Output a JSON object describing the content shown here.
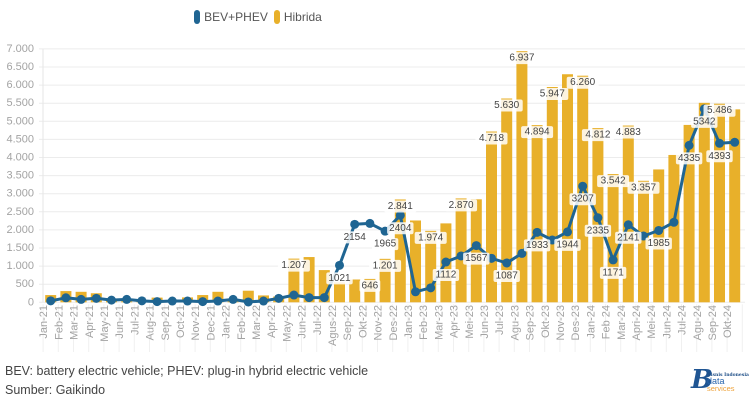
{
  "chart_data": {
    "type": "bar",
    "title": "",
    "xlabel": "",
    "ylabel": "",
    "ylim": [
      0,
      7000
    ],
    "grid": true,
    "legend": {
      "position": "top-center"
    },
    "y_ticks": [
      {
        "value": 0,
        "label": "0"
      },
      {
        "value": 500,
        "label": "500"
      },
      {
        "value": 1000,
        "label": "1.000"
      },
      {
        "value": 1500,
        "label": "1.500"
      },
      {
        "value": 2000,
        "label": "2.000"
      },
      {
        "value": 2500,
        "label": "2.500"
      },
      {
        "value": 3000,
        "label": "3.000"
      },
      {
        "value": 3500,
        "label": "3.500"
      },
      {
        "value": 4000,
        "label": "4.000"
      },
      {
        "value": 4500,
        "label": "4.500"
      },
      {
        "value": 5000,
        "label": "5.000"
      },
      {
        "value": 5500,
        "label": "5.500"
      },
      {
        "value": 6000,
        "label": "6.000"
      },
      {
        "value": 6500,
        "label": "6.500"
      },
      {
        "value": 7000,
        "label": "7.000"
      }
    ],
    "categories": [
      "Jan-21",
      "Feb-21",
      "Mar-21",
      "Apr-21",
      "May-21",
      "Jun-21",
      "Jul-21",
      "Aug-21",
      "Sep-21",
      "Oct-21",
      "Nov-21",
      "Dec-21",
      "Jan-22",
      "Feb-22",
      "Mar-22",
      "Apr-22",
      "May-22",
      "Jun-22",
      "Jul-22",
      "Agus-22",
      "Sep-22",
      "Okt-22",
      "Nov-22",
      "Des-22",
      "Jan-23",
      "Feb-23",
      "Mar-23",
      "Apr-23",
      "Mei-23",
      "Jun-23",
      "Jul-23",
      "Agu-23",
      "Sep-23",
      "Okt-23",
      "Nov-23",
      "Des-23",
      "Jan-24",
      "Feb 24",
      "Mar-24",
      "Apri-24",
      "Mei-24",
      "Jun-24",
      "Jul-24",
      "Agu-24",
      "Sep-24",
      "Okt-24"
    ],
    "series": [
      {
        "name": "BEV+PHEV",
        "type": "line",
        "color": "#1f6592",
        "values": [
          40,
          125,
          80,
          110,
          60,
          80,
          40,
          20,
          35,
          35,
          20,
          35,
          80,
          10,
          35,
          110,
          200,
          130,
          130,
          1021,
          2154,
          2180,
          1965,
          2404,
          290,
          400,
          1112,
          1280,
          1567,
          1215,
          1087,
          1350,
          1933,
          1720,
          1944,
          3207,
          2335,
          1171,
          2141,
          1830,
          1985,
          2210,
          4335,
          5342,
          4393,
          4420
        ],
        "labels": [
          null,
          null,
          null,
          null,
          null,
          null,
          null,
          null,
          null,
          null,
          null,
          null,
          null,
          null,
          null,
          null,
          null,
          null,
          null,
          "1021",
          "2154",
          null,
          "1965",
          "2404",
          null,
          null,
          "1112",
          null,
          "1567",
          null,
          "1087",
          null,
          "1933",
          null,
          "1944",
          "3207",
          "2335",
          "1171",
          "2141",
          null,
          "1985",
          null,
          "4335",
          "5342",
          "4393",
          null
        ]
      },
      {
        "name": "Hibrida",
        "type": "bar",
        "color": "#e8b02a",
        "values": [
          200,
          310,
          290,
          250,
          40,
          30,
          30,
          130,
          40,
          135,
          200,
          290,
          40,
          320,
          190,
          160,
          1207,
          1250,
          890,
          550,
          630,
          646,
          1201,
          2841,
          2260,
          1974,
          2180,
          2870,
          2845,
          4718,
          5630,
          6937,
          4894,
          5947,
          6300,
          6260,
          4812,
          3542,
          4883,
          3357,
          3670,
          4070,
          4900,
          5510,
          5486,
          5330
        ],
        "labels": [
          null,
          null,
          null,
          null,
          null,
          null,
          null,
          null,
          null,
          null,
          null,
          null,
          null,
          null,
          null,
          null,
          "1.207",
          null,
          null,
          null,
          null,
          "646",
          "1.201",
          "2.841",
          null,
          "1.974",
          null,
          "2.870",
          null,
          "4.718",
          "5.630",
          "6.937",
          "4.894",
          "5.947",
          null,
          "6.260",
          "4.812",
          "3.542",
          "4.883",
          "3.357",
          null,
          null,
          null,
          null,
          "5.486",
          null
        ]
      }
    ]
  },
  "footer": {
    "note": "BEV: battery electric vehicle; PHEV: plug-in hybrid electric vehicle",
    "source": "Sumber: Gaikindo"
  },
  "logo": {
    "letter": "B",
    "brand": "Bisnis Indonesia",
    "word1": "data",
    "word2": "services"
  }
}
